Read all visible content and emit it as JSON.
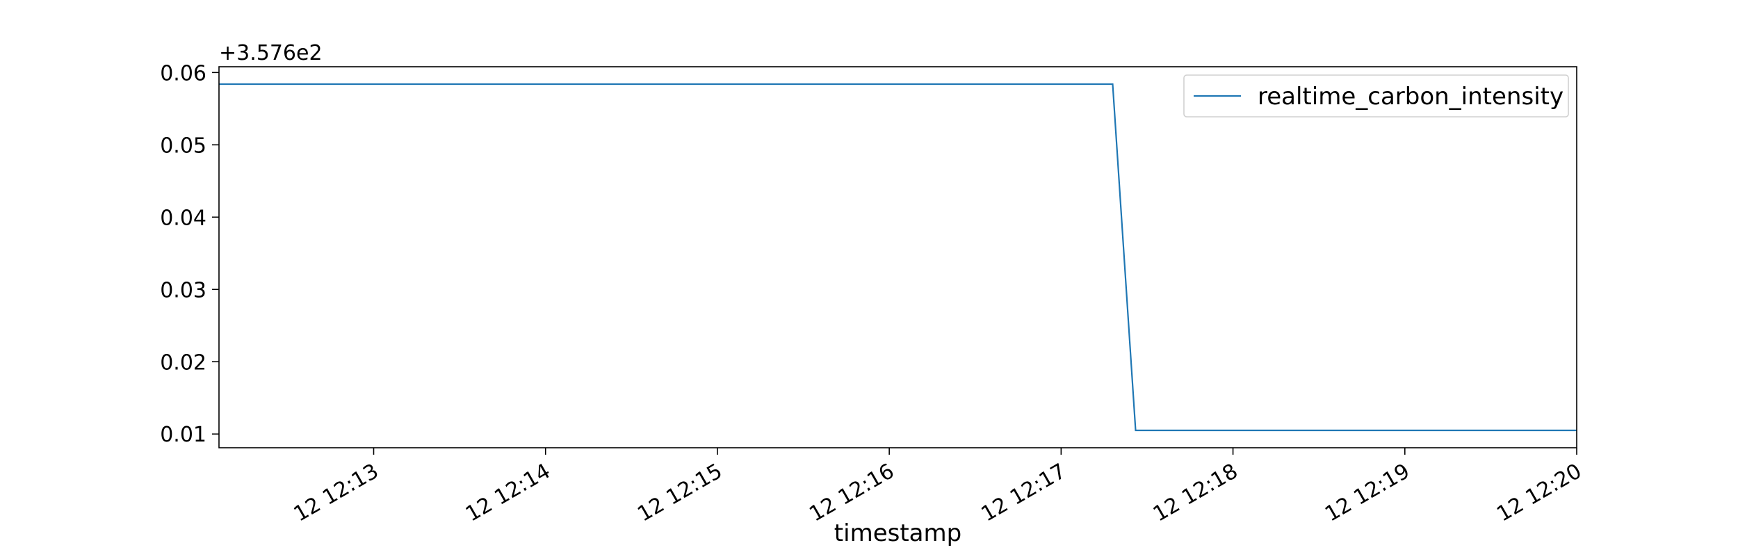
{
  "chart_data": {
    "type": "line",
    "title": "",
    "xlabel": "timestamp",
    "ylabel": "",
    "y_offset_label": "+3.576e2",
    "y_offset": 357.6,
    "x_tick_labels": [
      "12 12:13",
      "12 12:14",
      "12 12:15",
      "12 12:16",
      "12 12:17",
      "12 12:18",
      "12 12:19",
      "12 12:20"
    ],
    "x_tick_values": [
      "12:13:00",
      "12:14:00",
      "12:15:00",
      "12:16:00",
      "12:17:00",
      "12:18:00",
      "12:19:00",
      "12:20:00"
    ],
    "y_tick_labels": [
      "0.01",
      "0.02",
      "0.03",
      "0.04",
      "0.05",
      "0.06"
    ],
    "y_tick_values": [
      0.01,
      0.02,
      0.03,
      0.04,
      0.05,
      0.06
    ],
    "xlim": [
      "12:12:06",
      "12:20:00"
    ],
    "ylim": [
      0.0081,
      0.0608
    ],
    "grid": false,
    "legend_position": "top-right",
    "series": [
      {
        "name": "realtime_carbon_intensity",
        "color": "#1f77b4",
        "x": [
          "12:12:06",
          "12:17:18",
          "12:17:26",
          "12:20:00"
        ],
        "y": [
          0.0584,
          0.0584,
          0.0105,
          0.0105
        ]
      }
    ]
  }
}
